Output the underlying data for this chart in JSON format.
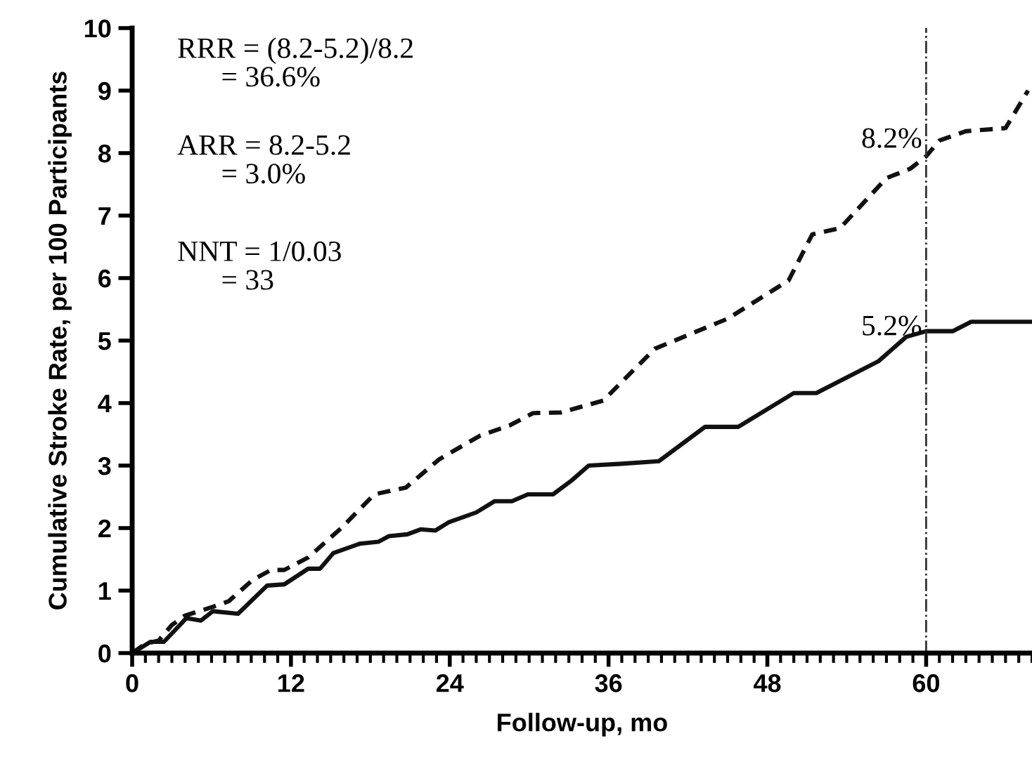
{
  "chart_data": {
    "type": "line",
    "xlabel": "Follow-up, mo",
    "ylabel": "Cumulative Stroke Rate, per 100 Participants",
    "xlim": [
      0,
      68
    ],
    "ylim": [
      0,
      10
    ],
    "xticks": [
      0,
      12,
      24,
      36,
      48,
      60
    ],
    "yticks": [
      0,
      1,
      2,
      3,
      4,
      5,
      6,
      7,
      8,
      9,
      10
    ],
    "grid": false,
    "legend": false,
    "marker": "none",
    "series": [
      {
        "color": "#111111",
        "line_style": "dashed",
        "x": [
          0,
          1,
          2,
          3,
          4,
          6.1,
          7.3,
          9.1,
          10.5,
          11.5,
          13.3,
          15.8,
          18.3,
          20.7,
          23.2,
          26.3,
          28.5,
          30.3,
          32.4,
          35.6,
          39.5,
          45,
          49.6,
          51.4,
          53.5,
          57,
          58.8,
          60,
          61,
          63,
          66,
          67.7
        ],
        "values": [
          0,
          0.15,
          0.2,
          0.45,
          0.6,
          0.74,
          0.83,
          1.17,
          1.33,
          1.33,
          1.53,
          2.0,
          2.54,
          2.65,
          3.1,
          3.48,
          3.64,
          3.84,
          3.85,
          4.04,
          4.87,
          5.35,
          5.96,
          6.7,
          6.8,
          7.6,
          7.75,
          7.95,
          8.2,
          8.35,
          8.4,
          9.0
        ]
      },
      {
        "color": "#111111",
        "line_style": "solid",
        "x": [
          0,
          1.4,
          2.4,
          4.1,
          5.2,
          6.1,
          8,
          10.2,
          11.5,
          13.3,
          14.2,
          15.2,
          17.2,
          18.6,
          19.4,
          20.8,
          21.8,
          22.9,
          23.9,
          26,
          27.4,
          28.7,
          29.9,
          31.8,
          33.2,
          34.5,
          37,
          39.8,
          43.3,
          45.8,
          50,
          51.7,
          56.4,
          58.5,
          60,
          62,
          63.4,
          68
        ],
        "values": [
          0,
          0.18,
          0.18,
          0.56,
          0.52,
          0.67,
          0.63,
          1.08,
          1.1,
          1.35,
          1.35,
          1.6,
          1.75,
          1.78,
          1.87,
          1.9,
          1.98,
          1.96,
          2.09,
          2.25,
          2.43,
          2.43,
          2.54,
          2.54,
          2.76,
          3.0,
          3.03,
          3.07,
          3.62,
          3.62,
          4.16,
          4.16,
          4.67,
          5.06,
          5.15,
          5.15,
          5.3,
          5.3
        ]
      }
    ],
    "ref_lines": [
      {
        "axis": "x",
        "value": 60,
        "line_style": "dashdot",
        "color": "#333333"
      }
    ],
    "annotations": [
      "RRR = (8.2-5.2)/8.2\n      = 36.6%",
      "ARR = 8.2-5.2\n      = 3.0%",
      "NNT = 1/0.03\n      = 33",
      {
        "text": "8.2%",
        "x": 60,
        "y": 8.2
      },
      {
        "text": "5.2%",
        "x": 60,
        "y": 5.2
      }
    ]
  }
}
